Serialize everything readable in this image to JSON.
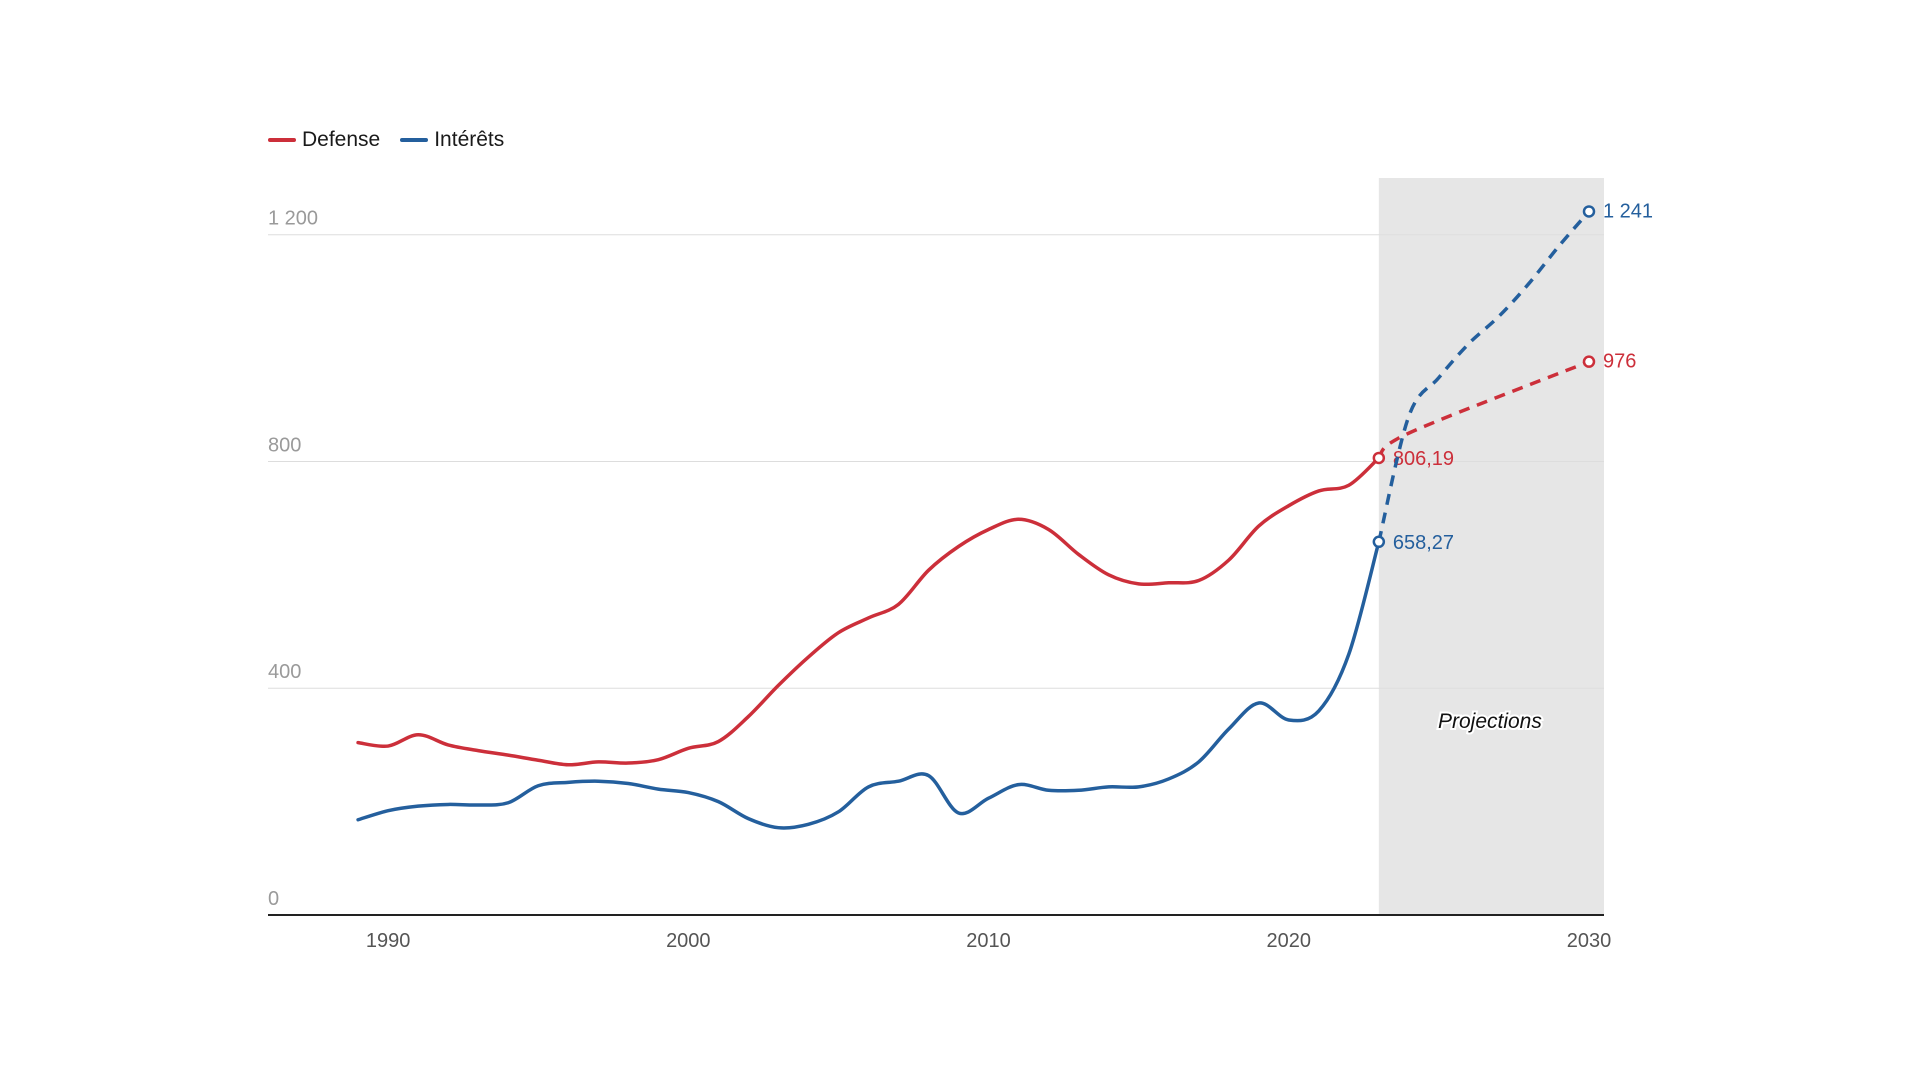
{
  "chart_data": {
    "type": "line",
    "legend_position": "top-left",
    "xlim": [
      1986,
      2030.5
    ],
    "ylim": [
      0,
      1300
    ],
    "x_ticks": [
      1990,
      2000,
      2010,
      2020,
      2030
    ],
    "x_tick_labels": [
      "1990",
      "2000",
      "2010",
      "2020",
      "2030"
    ],
    "y_ticks": [
      0,
      400,
      800,
      1200
    ],
    "y_tick_labels": [
      "0",
      "400",
      "800",
      "1 200"
    ],
    "grid": true,
    "projection_start": 2023,
    "projection_label": "Projections",
    "series": [
      {
        "name": "Defense",
        "color": "#cc2f3a",
        "x": [
          1989,
          1990,
          1991,
          1992,
          1993,
          1994,
          1995,
          1996,
          1997,
          1998,
          1999,
          2000,
          2001,
          2002,
          2003,
          2004,
          2005,
          2006,
          2007,
          2008,
          2009,
          2010,
          2011,
          2012,
          2013,
          2014,
          2015,
          2016,
          2017,
          2018,
          2019,
          2020,
          2021,
          2022,
          2023
        ],
        "values": [
          304,
          298,
          318,
          300,
          290,
          282,
          273,
          265,
          270,
          268,
          274,
          294,
          306,
          350,
          405,
          455,
          498,
          524,
          548,
          608,
          650,
          680,
          698,
          680,
          636,
          600,
          584,
          586,
          590,
          626,
          686,
          722,
          748,
          758,
          806.19
        ],
        "end_label": "806,19",
        "projection": {
          "x": [
            2023,
            2024,
            2030
          ],
          "values": [
            806.19,
            850,
            976
          ]
        },
        "projection_end_label": "976"
      },
      {
        "name": "Intérêts",
        "color": "#245f9d",
        "x": [
          1989,
          1990,
          1991,
          1992,
          1993,
          1994,
          1995,
          1996,
          1997,
          1998,
          1999,
          2000,
          2001,
          2002,
          2003,
          2004,
          2005,
          2006,
          2007,
          2008,
          2009,
          2010,
          2011,
          2012,
          2013,
          2014,
          2015,
          2016,
          2017,
          2018,
          2019,
          2020,
          2021,
          2022,
          2023
        ],
        "values": [
          168,
          184,
          192,
          195,
          194,
          198,
          228,
          234,
          236,
          232,
          222,
          216,
          200,
          170,
          154,
          160,
          182,
          226,
          236,
          246,
          180,
          206,
          230,
          220,
          220,
          226,
          226,
          240,
          270,
          328,
          374,
          344,
          360,
          460,
          658.27
        ],
        "end_label": "658,27",
        "projection": {
          "x": [
            2023,
            2024,
            2025,
            2026,
            2027,
            2028,
            2029,
            2030
          ],
          "values": [
            658.27,
            880,
            948,
            1008,
            1056,
            1114,
            1180,
            1241
          ]
        },
        "projection_end_label": "1 241"
      }
    ]
  }
}
